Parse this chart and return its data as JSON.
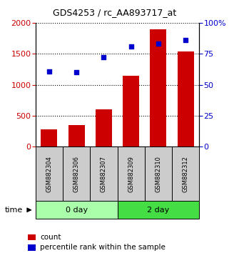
{
  "title": "GDS4253 / rc_AA893717_at",
  "categories": [
    "GSM882304",
    "GSM882306",
    "GSM882307",
    "GSM882309",
    "GSM882310",
    "GSM882312"
  ],
  "bar_values": [
    280,
    350,
    600,
    1150,
    1900,
    1540
  ],
  "percentile_values": [
    61,
    60,
    72,
    81,
    83,
    86
  ],
  "bar_color": "#cc0000",
  "dot_color": "#0000cc",
  "left_ylim": [
    0,
    2000
  ],
  "right_ylim": [
    0,
    100
  ],
  "left_yticks": [
    0,
    500,
    1000,
    1500,
    2000
  ],
  "right_yticks": [
    0,
    25,
    50,
    75,
    100
  ],
  "right_yticklabels": [
    "0",
    "25",
    "50",
    "75",
    "100%"
  ],
  "groups": [
    {
      "label": "0 day",
      "indices": [
        0,
        1,
        2
      ],
      "color": "#aaffaa"
    },
    {
      "label": "2 day",
      "indices": [
        3,
        4,
        5
      ],
      "color": "#44dd44"
    }
  ],
  "time_label": "time",
  "legend_count_label": "count",
  "legend_pct_label": "percentile rank within the sample",
  "background_color": "#ffffff",
  "plot_bg_color": "#ffffff",
  "label_box_color": "#cccccc"
}
